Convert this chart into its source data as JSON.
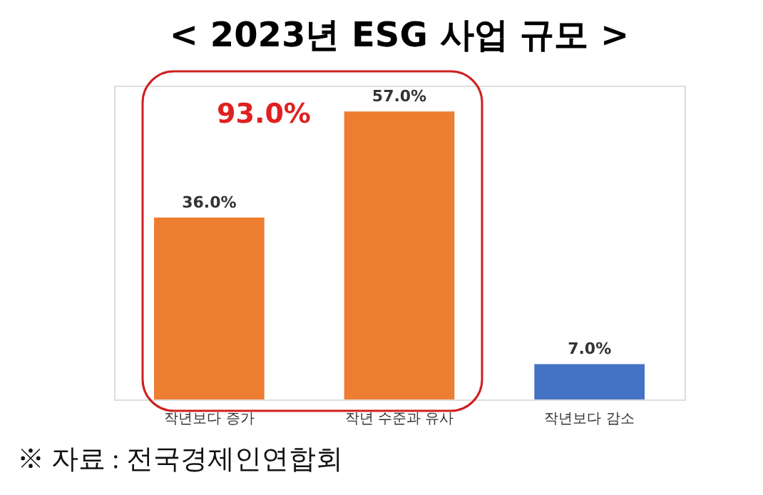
{
  "chart_data": {
    "type": "bar",
    "title": "< 2023년 ESG 사업 규모 >",
    "categories": [
      "작년보다 증가",
      "작년 수준과 유사",
      "작년보다 감소"
    ],
    "values": [
      36.0,
      57.0,
      7.0
    ],
    "value_labels": [
      "36.0%",
      "57.0%",
      "7.0%"
    ],
    "colors": [
      "#ed7d31",
      "#ed7d31",
      "#4472c4"
    ],
    "tick_labels": "x",
    "annotations": [
      "93.0%",
      "※ 자료 : 전국경제인연합회"
    ]
  }
}
